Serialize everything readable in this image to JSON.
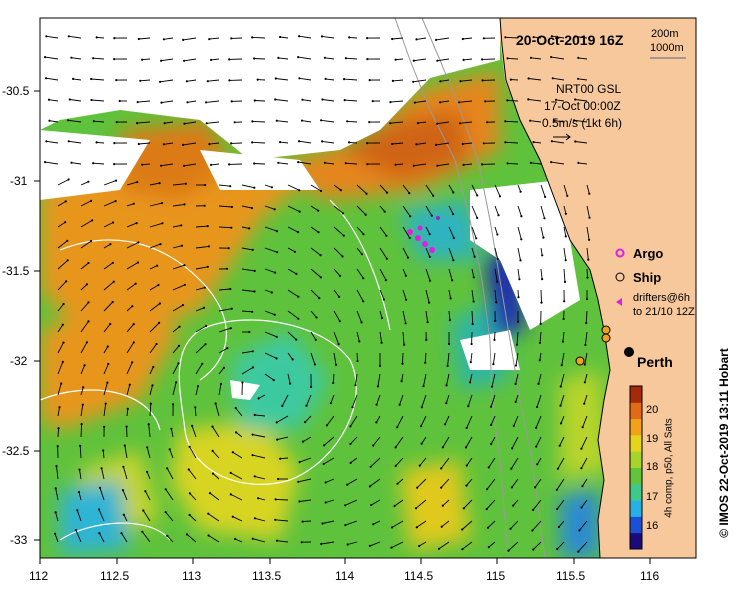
{
  "title": "20-Oct-2019 16Z",
  "scale": {
    "label_top": "200m",
    "label_bottom": "1000m"
  },
  "current_info": {
    "line1": "NRT00 GSL",
    "line2": "17-Oct 00:00Z",
    "line3": "0.5m/s (1kt 6h)"
  },
  "legend": {
    "argo": "Argo",
    "ship": "Ship",
    "drifters_line1": "drifters@6h",
    "drifters_line2": "to 21/10 12Z"
  },
  "city": "Perth",
  "colorbar": {
    "ticks": [
      "20",
      "19",
      "18",
      "17",
      "16"
    ],
    "label": "4h comp, p50, All Sats",
    "colors": [
      "#1a0a7a",
      "#1a4fd6",
      "#27b0e6",
      "#3cc98a",
      "#62c43a",
      "#a6d42a",
      "#e4d41e",
      "#f2a21a",
      "#e06a16",
      "#a42a0a"
    ]
  },
  "credit": "© IMOS 22-Oct-2019 13:11 Hobart",
  "axes": {
    "x_ticks": [
      "112",
      "112.5",
      "113",
      "113.5",
      "114",
      "114.5",
      "115",
      "115.5",
      "116"
    ],
    "y_ticks": [
      "-30.5",
      "-31",
      "-31.5",
      "-32",
      "-32.5",
      "-33"
    ]
  },
  "colors": {
    "land": "#f7c89c",
    "cloud": "#ffffff"
  }
}
